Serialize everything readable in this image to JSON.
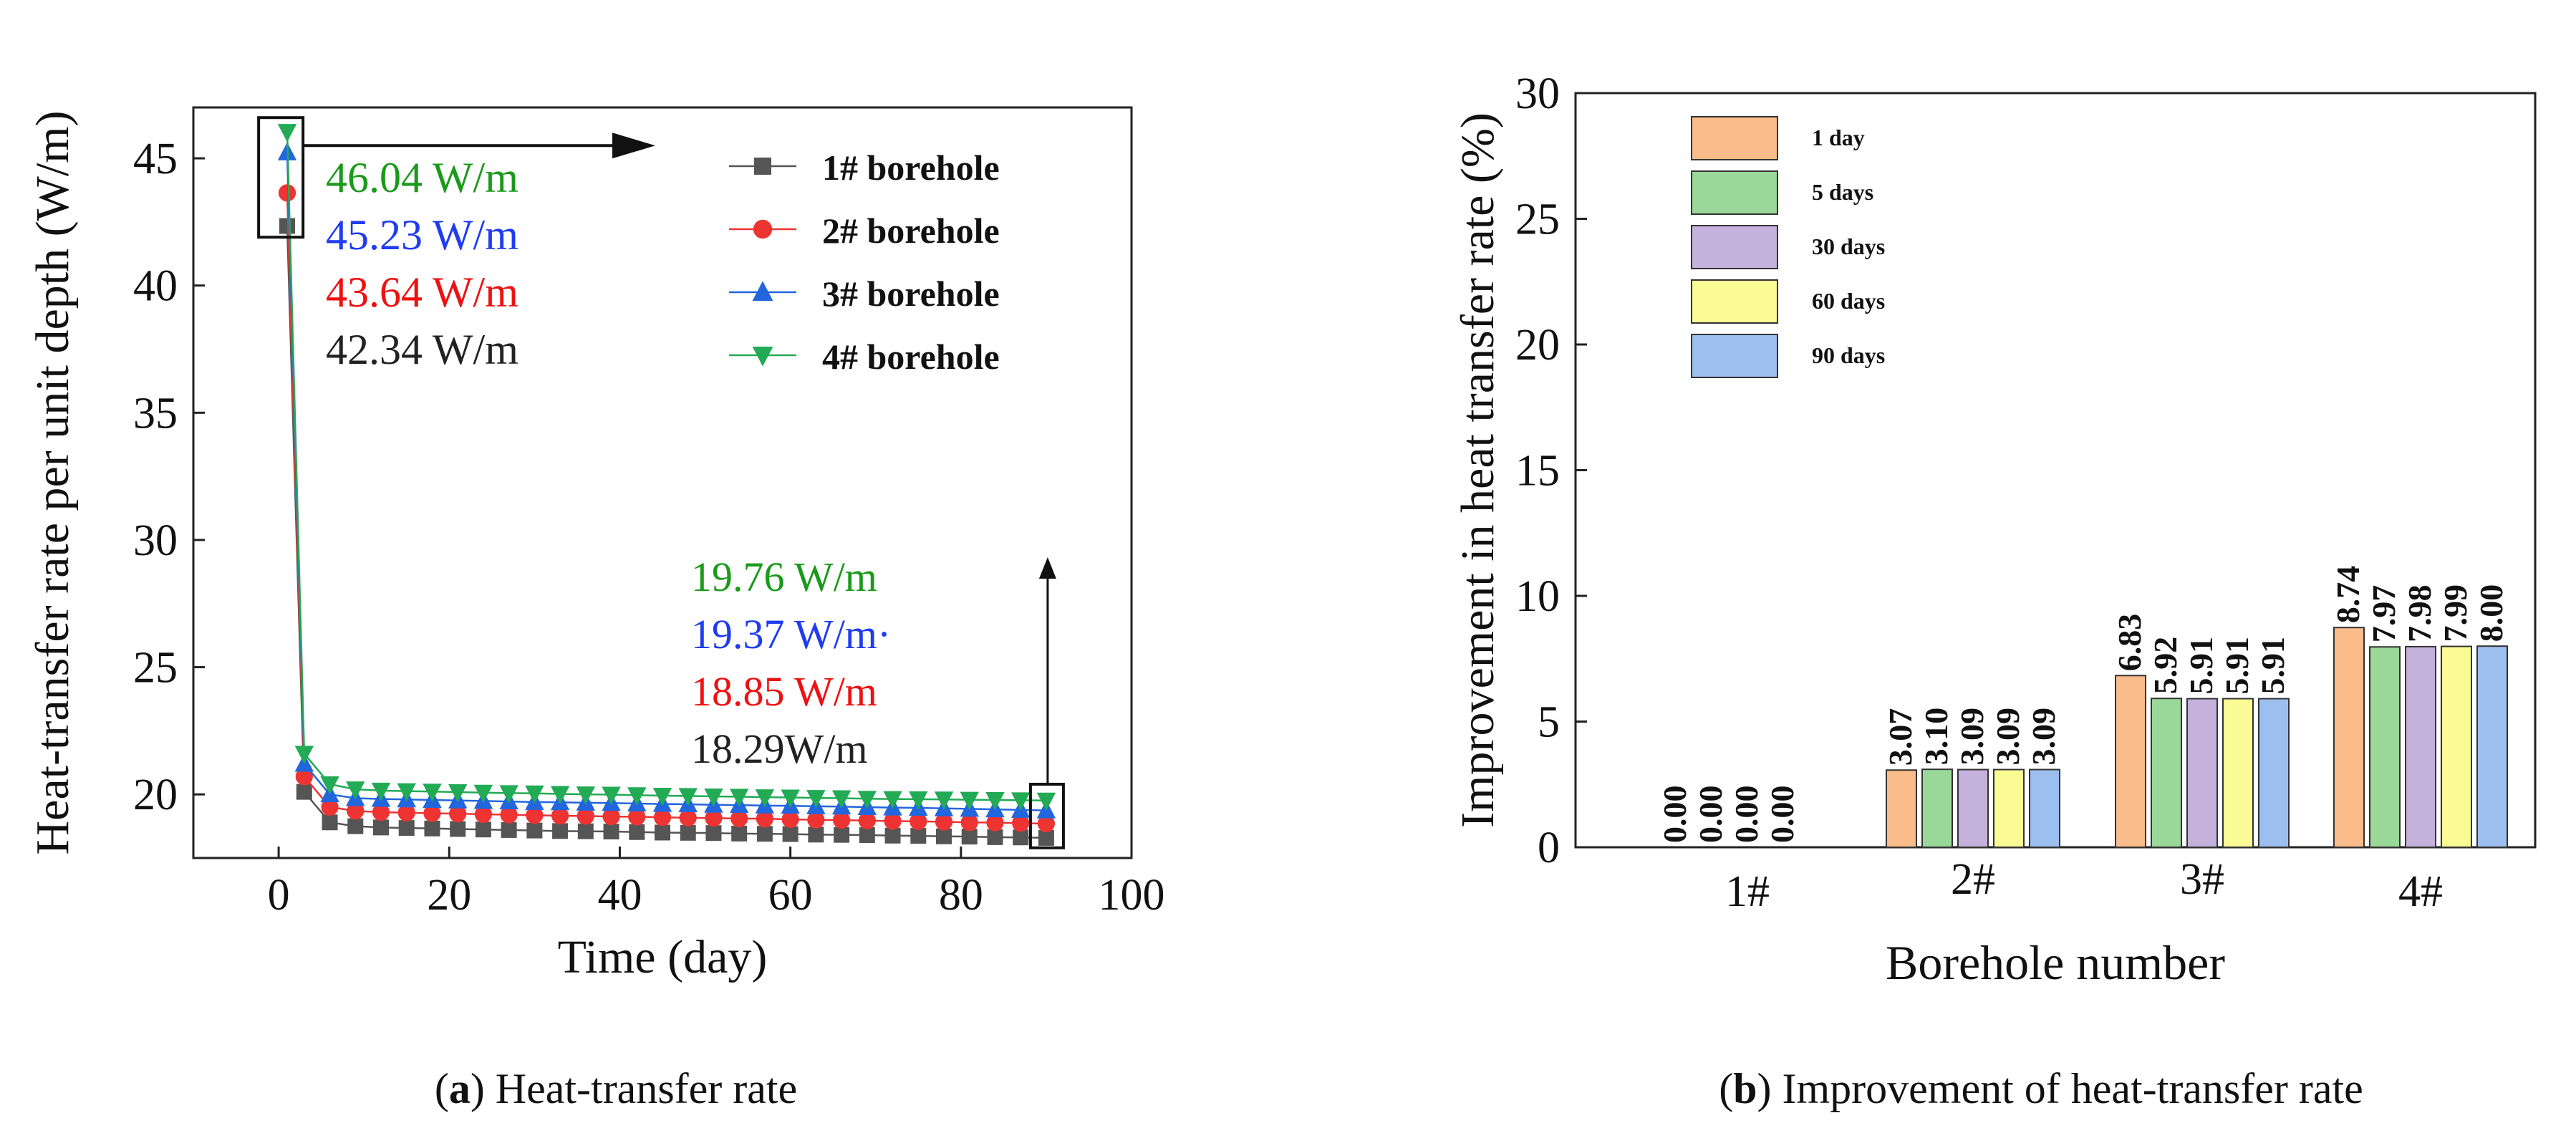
{
  "chart_data": [
    {
      "type": "line",
      "xlabel": "Time (day)",
      "ylabel": "Heat-transfer rate per unit depth (W/m)",
      "xlim": [
        -10,
        100
      ],
      "ylim": [
        17.5,
        47
      ],
      "xticks": [
        "0",
        "20",
        "40",
        "60",
        "80",
        "100"
      ],
      "yticks": [
        "20",
        "25",
        "30",
        "35",
        "40",
        "45"
      ],
      "legend_position": "top-right",
      "x": [
        1,
        3,
        6,
        9,
        12,
        15,
        18,
        21,
        24,
        27,
        30,
        33,
        36,
        39,
        42,
        45,
        48,
        51,
        54,
        57,
        60,
        63,
        66,
        69,
        72,
        75,
        78,
        81,
        84,
        87,
        90
      ],
      "series": [
        {
          "name": "1# borehole",
          "color": "#555555",
          "marker": "square",
          "values": [
            42.34,
            20.1,
            18.9,
            18.75,
            18.7,
            18.68,
            18.66,
            18.64,
            18.62,
            18.6,
            18.58,
            18.56,
            18.55,
            18.54,
            18.52,
            18.5,
            18.49,
            18.48,
            18.46,
            18.45,
            18.44,
            18.42,
            18.41,
            18.4,
            18.38,
            18.37,
            18.35,
            18.34,
            18.32,
            18.31,
            18.29
          ]
        },
        {
          "name": "2# borehole",
          "color": "#ee3333",
          "marker": "circle",
          "values": [
            43.64,
            20.7,
            19.5,
            19.35,
            19.3,
            19.28,
            19.26,
            19.24,
            19.22,
            19.2,
            19.18,
            19.16,
            19.15,
            19.13,
            19.12,
            19.1,
            19.08,
            19.07,
            19.05,
            19.04,
            19.02,
            19.0,
            18.99,
            18.97,
            18.95,
            18.94,
            18.92,
            18.9,
            18.89,
            18.87,
            18.85
          ]
        },
        {
          "name": "3# borehole",
          "color": "#2266dd",
          "marker": "triangle-up",
          "values": [
            45.23,
            21.2,
            20.0,
            19.85,
            19.82,
            19.8,
            19.78,
            19.76,
            19.74,
            19.72,
            19.7,
            19.69,
            19.67,
            19.66,
            19.64,
            19.62,
            19.61,
            19.59,
            19.58,
            19.56,
            19.55,
            19.53,
            19.52,
            19.5,
            19.48,
            19.47,
            19.45,
            19.43,
            19.41,
            19.39,
            19.37
          ]
        },
        {
          "name": "4# borehole",
          "color": "#22aa55",
          "marker": "triangle-down",
          "values": [
            46.04,
            21.6,
            20.4,
            20.2,
            20.15,
            20.13,
            20.11,
            20.09,
            20.07,
            20.05,
            20.04,
            20.02,
            20.0,
            19.99,
            19.97,
            19.95,
            19.94,
            19.92,
            19.91,
            19.89,
            19.88,
            19.86,
            19.85,
            19.83,
            19.82,
            19.81,
            19.8,
            19.79,
            19.78,
            19.77,
            19.76
          ]
        }
      ],
      "annotations_start": [
        {
          "text": "46.04 W/m",
          "color": "#1a9a1a"
        },
        {
          "text": "45.23 W/m",
          "color": "#1f3cf0"
        },
        {
          "text": "43.64 W/m",
          "color": "#ee1111"
        },
        {
          "text": "42.34 W/m",
          "color": "#222222"
        }
      ],
      "annotations_end": [
        {
          "text": "19.76 W/m",
          "color": "#1a9a1a"
        },
        {
          "text": "19.37 W/m·",
          "color": "#1f3cf0"
        },
        {
          "text": "18.85 W/m",
          "color": "#ee1111"
        },
        {
          "text": "18.29W/m",
          "color": "#222222"
        }
      ],
      "caption": {
        "letter": "a",
        "text": ") Heat-transfer rate"
      }
    },
    {
      "type": "bar",
      "xlabel": "Borehole number",
      "ylabel": "Improvement in heat transfer rate (%)",
      "ylim": [
        0,
        30
      ],
      "yticks": [
        "0",
        "5",
        "10",
        "15",
        "20",
        "25",
        "30"
      ],
      "categories": [
        "1#",
        "2#",
        "3#",
        "4#"
      ],
      "legend_position": "top-left",
      "series": [
        {
          "name": "1 day",
          "color": "#f9bc8a",
          "values": [
            0.0,
            3.07,
            6.83,
            8.74
          ],
          "labels": [
            "0.00",
            "3.07",
            "6.83",
            "8.74"
          ]
        },
        {
          "name": "5 days",
          "color": "#99d898",
          "values": [
            0.0,
            3.1,
            5.92,
            7.97
          ],
          "labels": [
            "0.00",
            "3.10",
            "5.92",
            "7.97"
          ]
        },
        {
          "name": "30 days",
          "color": "#c4b2dc",
          "values": [
            0.0,
            3.09,
            5.91,
            7.98
          ],
          "labels": [
            "0.00",
            "3.09",
            "5.91",
            "7.98"
          ]
        },
        {
          "name": "60 days",
          "color": "#fbfb95",
          "values": [
            0.0,
            3.09,
            5.91,
            7.99
          ],
          "labels": [
            "0.00",
            "3.09",
            "5.91",
            "7.99"
          ]
        },
        {
          "name": "90 days",
          "color": "#9dbff0",
          "values": [
            0.0,
            3.09,
            5.91,
            8.0
          ],
          "labels": [
            "",
            "3.09",
            "5.91",
            "8.00"
          ]
        }
      ],
      "caption": {
        "letter": "b",
        "text": ") Improvement of heat-transfer rate"
      }
    }
  ]
}
